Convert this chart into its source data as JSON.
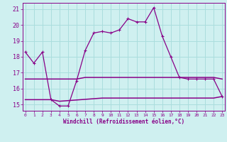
{
  "xlabel": "Windchill (Refroidissement éolien,°C)",
  "background_color": "#cff0f0",
  "grid_color": "#aadddd",
  "line_color": "#880088",
  "hours": [
    0,
    1,
    2,
    3,
    4,
    5,
    6,
    7,
    8,
    9,
    10,
    11,
    12,
    13,
    14,
    15,
    16,
    17,
    18,
    19,
    20,
    21,
    22,
    23
  ],
  "windchill": [
    18.3,
    17.6,
    18.3,
    15.3,
    14.9,
    14.9,
    16.5,
    18.4,
    19.5,
    19.6,
    19.5,
    19.7,
    20.4,
    20.2,
    20.2,
    21.1,
    19.3,
    18.0,
    16.7,
    16.6,
    16.6,
    16.6,
    16.6,
    15.5
  ],
  "max_line_x": [
    0,
    1,
    6,
    7,
    22,
    23
  ],
  "max_line_y": [
    16.6,
    16.6,
    16.6,
    16.7,
    16.7,
    16.6
  ],
  "min_line_x": [
    0,
    1,
    3,
    4,
    9,
    10,
    22,
    23
  ],
  "min_line_y": [
    15.3,
    15.3,
    15.3,
    15.2,
    15.4,
    15.4,
    15.4,
    15.5
  ],
  "ylim": [
    14.6,
    21.4
  ],
  "xlim": [
    -0.3,
    23.3
  ],
  "yticks": [
    15,
    16,
    17,
    18,
    19,
    20,
    21
  ],
  "xticks": [
    0,
    1,
    2,
    3,
    4,
    5,
    6,
    7,
    8,
    9,
    10,
    11,
    12,
    13,
    14,
    15,
    16,
    17,
    18,
    19,
    20,
    21,
    22,
    23
  ]
}
